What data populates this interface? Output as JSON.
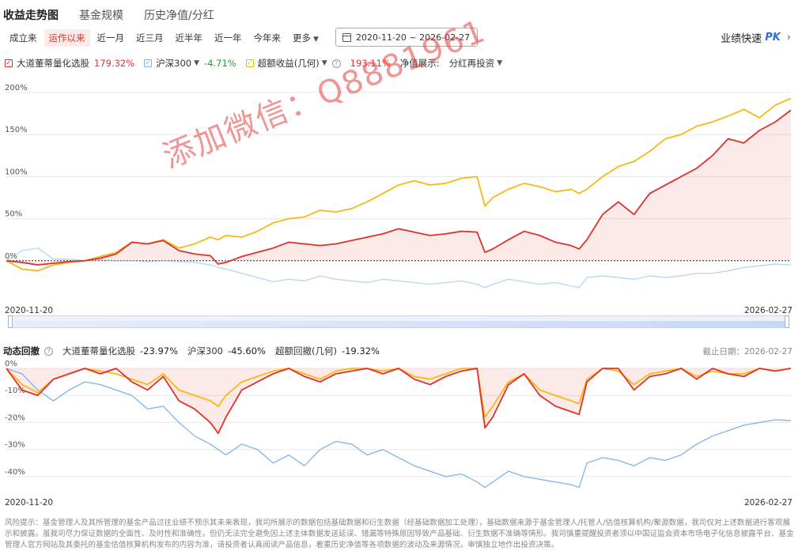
{
  "tabs": [
    {
      "label": "收益走势图",
      "active": true
    },
    {
      "label": "基金规模",
      "active": false
    },
    {
      "label": "历史净值/分红",
      "active": false
    }
  ],
  "periods": [
    {
      "label": "成立来",
      "active": false
    },
    {
      "label": "运作以来",
      "active": true
    },
    {
      "label": "近一月",
      "active": false
    },
    {
      "label": "近三月",
      "active": false
    },
    {
      "label": "近半年",
      "active": false
    },
    {
      "label": "近一年",
      "active": false
    },
    {
      "label": "今年来",
      "active": false
    },
    {
      "label": "更多",
      "active": false,
      "dropdown": true
    }
  ],
  "date_range": "2020-11-20 ~ 2026-02-27",
  "pk": {
    "label": "业绩快速",
    "badge": "PK"
  },
  "legend": {
    "fund": {
      "name": "大道董蒂量化选股",
      "value": "179.32%",
      "color": "#e0312b"
    },
    "index": {
      "name": "沪深300",
      "value": "-4.71%",
      "color": "#7cb5ec"
    },
    "excess": {
      "name": "超额收益(几何)",
      "value": "193.11%",
      "color": "#f5b916"
    },
    "nav_label": "净值展示:",
    "nav_value": "分红再投资"
  },
  "watermark": "添加微信：Q8881961",
  "drawdown": {
    "title": "动态回撤",
    "items": [
      {
        "name": "大道董蒂量化选股",
        "value": "-23.97%"
      },
      {
        "name": "沪深300",
        "value": "-45.60%"
      },
      {
        "name": "超额回撤(几何)",
        "value": "-19.32%"
      }
    ],
    "deadline": "截止日期：2026-02-27"
  },
  "risk_text": "风险提示：基金管理人及其所管理的基金产品过往业绩不预示其未来表现，我司所展示的数据包括基础数据和衍生数据（经基础数据加工处理），基础数据来源于基金管理人/托管人/估值核算机构/聚源数据，我司仅对上述数据进行客观展示和披露。虽我司尽力保证数据的全面性、及时性和准确性，但仍无法完全避免因上述主体数据发送延误、错漏等特殊原因导致产品基础、衍生数据不准确等情形。我司慎重提醒投资者须以中国证监会资本市场电子化信息披露平台、基金管理人官方网站及其委托的基金估值核算机构发布的内容为准，请投资者认真阅读产品信息，着重历史净值等各项数据的波动及来源情况，审慎独立地作出投资决策。",
  "chart_data": [
    {
      "type": "line",
      "title": "",
      "x_start": "2020-11-20",
      "x_end": "2026-02-27",
      "x_tick_labels": [
        "2020-11-20",
        "2026-02-27"
      ],
      "x": [
        0,
        0.02,
        0.04,
        0.06,
        0.08,
        0.1,
        0.12,
        0.14,
        0.16,
        0.18,
        0.2,
        0.22,
        0.24,
        0.26,
        0.27,
        0.28,
        0.3,
        0.32,
        0.34,
        0.36,
        0.38,
        0.4,
        0.42,
        0.44,
        0.46,
        0.48,
        0.5,
        0.52,
        0.54,
        0.56,
        0.58,
        0.6,
        0.61,
        0.62,
        0.64,
        0.66,
        0.68,
        0.7,
        0.72,
        0.73,
        0.74,
        0.76,
        0.78,
        0.8,
        0.82,
        0.84,
        0.86,
        0.88,
        0.9,
        0.92,
        0.94,
        0.96,
        0.98,
        1.0
      ],
      "ylim": [
        -50,
        200
      ],
      "yticks": [
        "200%",
        "150%",
        "100%",
        "50%",
        "0%"
      ],
      "y_tick_values": [
        200,
        150,
        100,
        50,
        0
      ],
      "series": [
        {
          "name": "大道董蒂量化选股",
          "color": "#e0312b",
          "fill": true,
          "values": [
            0,
            -2,
            -5,
            -3,
            -1,
            0,
            3,
            8,
            22,
            20,
            24,
            12,
            8,
            6,
            -4,
            -2,
            5,
            10,
            15,
            22,
            20,
            18,
            20,
            24,
            28,
            32,
            38,
            34,
            30,
            32,
            35,
            34,
            10,
            14,
            25,
            35,
            30,
            22,
            18,
            14,
            25,
            55,
            70,
            55,
            80,
            90,
            100,
            110,
            125,
            145,
            140,
            155,
            165,
            179
          ]
        },
        {
          "name": "沪深300",
          "color": "#7cb5ec",
          "fill": false,
          "values": [
            0,
            12,
            15,
            2,
            2,
            0,
            1,
            0,
            0,
            -1,
            0,
            -1,
            -2,
            -5,
            -8,
            -10,
            -15,
            -20,
            -25,
            -22,
            -24,
            -18,
            -22,
            -24,
            -26,
            -22,
            -24,
            -26,
            -28,
            -26,
            -24,
            -28,
            -32,
            -28,
            -22,
            -25,
            -28,
            -26,
            -30,
            -32,
            -20,
            -18,
            -20,
            -22,
            -18,
            -20,
            -18,
            -15,
            -15,
            -12,
            -8,
            -6,
            -4,
            -5
          ]
        },
        {
          "name": "超额收益(几何)",
          "color": "#f5b916",
          "fill": false,
          "values": [
            0,
            -10,
            -12,
            -5,
            -2,
            0,
            5,
            10,
            22,
            20,
            25,
            15,
            20,
            28,
            25,
            30,
            28,
            35,
            45,
            50,
            52,
            60,
            58,
            62,
            70,
            80,
            90,
            95,
            90,
            92,
            98,
            100,
            65,
            75,
            85,
            92,
            88,
            82,
            85,
            80,
            85,
            100,
            112,
            118,
            130,
            145,
            150,
            160,
            165,
            172,
            180,
            170,
            185,
            193
          ]
        }
      ]
    },
    {
      "type": "area",
      "title": "动态回撤",
      "x_tick_labels": [
        "2020-11-20",
        "2026-02-27"
      ],
      "x": [
        0,
        0.02,
        0.04,
        0.06,
        0.08,
        0.1,
        0.12,
        0.14,
        0.16,
        0.18,
        0.2,
        0.22,
        0.24,
        0.26,
        0.27,
        0.28,
        0.3,
        0.32,
        0.34,
        0.36,
        0.38,
        0.4,
        0.42,
        0.44,
        0.46,
        0.48,
        0.5,
        0.52,
        0.54,
        0.56,
        0.58,
        0.6,
        0.61,
        0.62,
        0.64,
        0.66,
        0.68,
        0.7,
        0.72,
        0.73,
        0.74,
        0.76,
        0.78,
        0.8,
        0.82,
        0.84,
        0.86,
        0.88,
        0.9,
        0.92,
        0.94,
        0.96,
        0.98,
        1.0
      ],
      "ylim": [
        -45,
        0
      ],
      "yticks": [
        "0%",
        "-10%",
        "-20%",
        "-30%",
        "-40%"
      ],
      "y_tick_values": [
        0,
        -10,
        -20,
        -30,
        -40
      ],
      "series": [
        {
          "name": "大道董蒂量化选股",
          "color": "#e0312b",
          "fill": true,
          "values": [
            0,
            -8,
            -10,
            -4,
            -2,
            0,
            -2,
            0,
            -5,
            -8,
            -3,
            -12,
            -15,
            -20,
            -24,
            -18,
            -8,
            -5,
            -2,
            0,
            -3,
            -5,
            -2,
            -1,
            0,
            -2,
            0,
            -4,
            -6,
            -3,
            -1,
            0,
            -22,
            -18,
            -6,
            -2,
            -10,
            -14,
            -16,
            -17,
            -5,
            0,
            0,
            -8,
            -3,
            -2,
            0,
            -4,
            0,
            -2,
            -3,
            0,
            -1,
            0
          ]
        },
        {
          "name": "沪深300",
          "color": "#7cb5ec",
          "fill": false,
          "values": [
            0,
            -2,
            -8,
            -12,
            -8,
            -5,
            -6,
            -8,
            -10,
            -15,
            -14,
            -20,
            -25,
            -28,
            -30,
            -32,
            -28,
            -30,
            -35,
            -32,
            -36,
            -30,
            -27,
            -28,
            -32,
            -30,
            -33,
            -36,
            -38,
            -40,
            -39,
            -42,
            -44,
            -42,
            -38,
            -40,
            -41,
            -42,
            -43,
            -44,
            -35,
            -33,
            -34,
            -36,
            -33,
            -34,
            -32,
            -28,
            -25,
            -23,
            -21,
            -20,
            -19,
            -19.3
          ]
        },
        {
          "name": "超额回撤(几何)",
          "color": "#f5b916",
          "fill": false,
          "values": [
            0,
            -6,
            -9,
            -4,
            -2,
            0,
            -1,
            -2,
            -4,
            -6,
            -2,
            -8,
            -10,
            -12,
            -14,
            -10,
            -5,
            -3,
            -1,
            0,
            -2,
            -4,
            -1,
            0,
            0,
            -1,
            0,
            -3,
            -4,
            -2,
            0,
            0,
            -18,
            -14,
            -5,
            -2,
            -8,
            -10,
            -12,
            -13,
            -4,
            0,
            -1,
            -6,
            -2,
            -1,
            0,
            -3,
            -1,
            -2,
            -2,
            0,
            -1,
            0
          ]
        }
      ]
    }
  ]
}
